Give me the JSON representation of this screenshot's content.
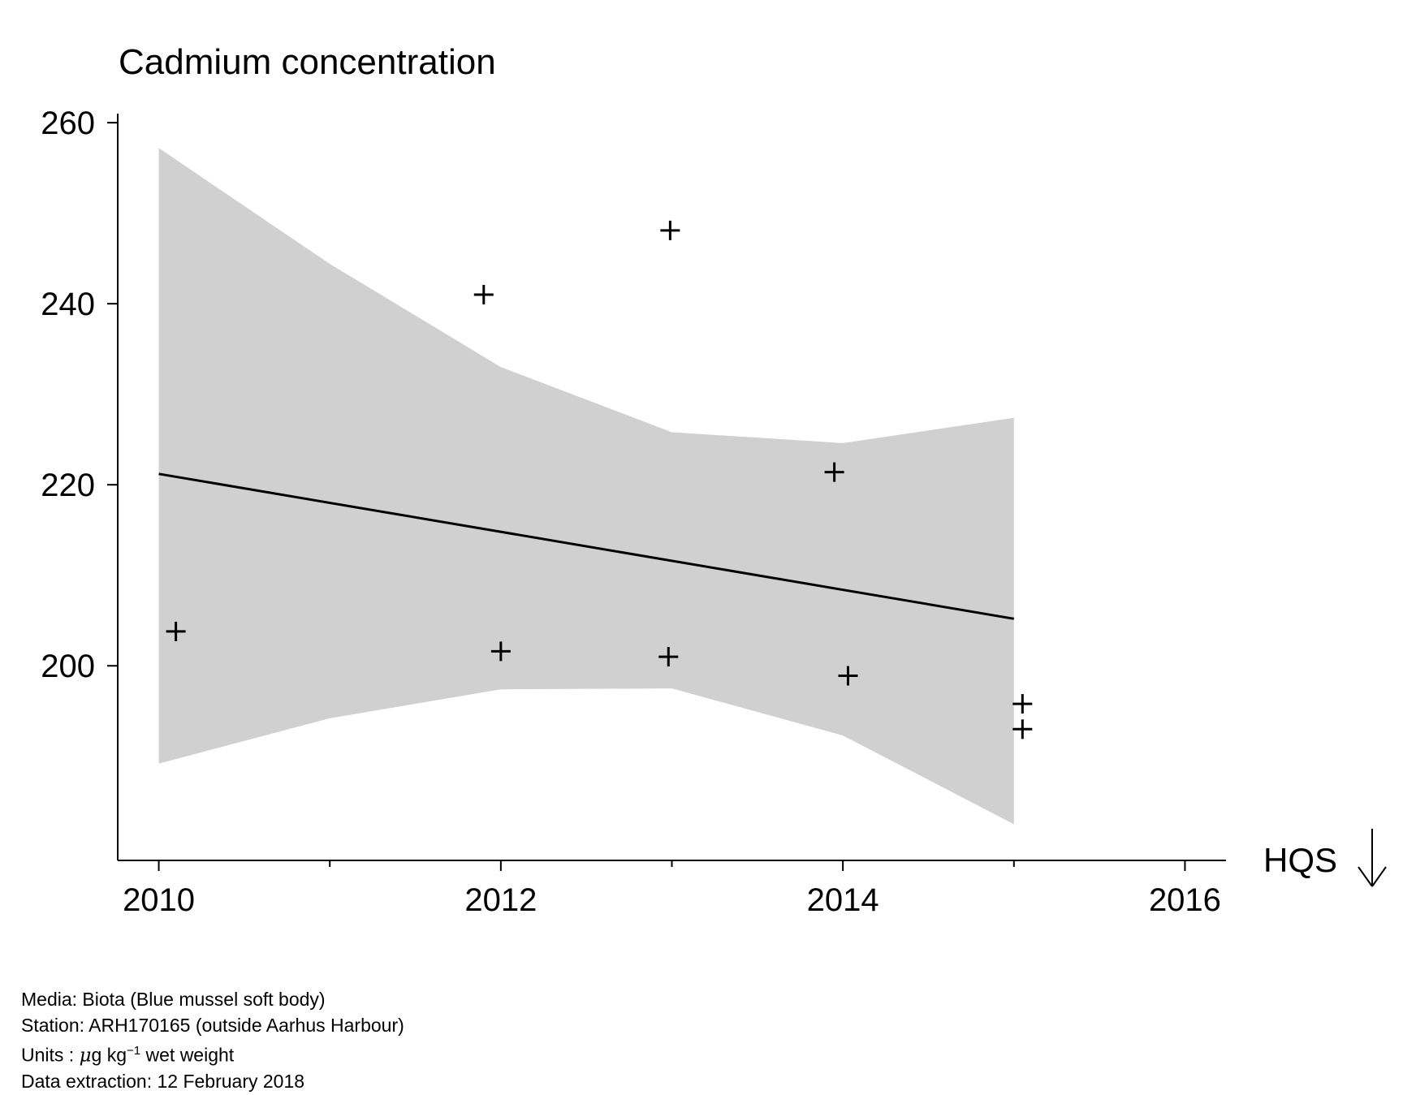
{
  "chart_data": {
    "type": "scatter",
    "title": "Cadmium concentration",
    "xlabel": "",
    "ylabel": "",
    "xlim": [
      2009.76,
      2016.24
    ],
    "ylim": [
      178.5,
      261
    ],
    "x_ticks": [
      2010,
      2012,
      2014,
      2016
    ],
    "x_minor_ticks": [
      2011,
      2013,
      2015
    ],
    "x_tick_labels": [
      "2010",
      "2012",
      "2014",
      "2016"
    ],
    "y_ticks": [
      200,
      220,
      240,
      260
    ],
    "y_tick_labels": [
      "200",
      "220",
      "240",
      "260"
    ],
    "grid": false,
    "legend": "none",
    "series": [
      {
        "type": "scatter",
        "marker": "+",
        "points": [
          {
            "x": 2010.1,
            "y": 203.8
          },
          {
            "x": 2011.9,
            "y": 241.0
          },
          {
            "x": 2012.0,
            "y": 201.6
          },
          {
            "x": 2012.99,
            "y": 248.1
          },
          {
            "x": 2012.98,
            "y": 201.0
          },
          {
            "x": 2013.95,
            "y": 221.4
          },
          {
            "x": 2014.03,
            "y": 198.9
          },
          {
            "x": 2015.05,
            "y": 195.8
          },
          {
            "x": 2015.05,
            "y": 193.0
          }
        ]
      },
      {
        "type": "line",
        "points": [
          {
            "x": 2010,
            "y": 221.2
          },
          {
            "x": 2015,
            "y": 205.2
          }
        ]
      },
      {
        "type": "band",
        "x": [
          2010,
          2011,
          2012,
          2013,
          2014,
          2015
        ],
        "upper": [
          257.2,
          244.4,
          233.0,
          225.8,
          224.6,
          227.4
        ],
        "lower": [
          189.2,
          194.2,
          197.4,
          197.5,
          192.3,
          182.5
        ]
      }
    ],
    "annotation": {
      "text": "HQS",
      "arrow": "down"
    },
    "colors": {
      "band": "#d0d0d0",
      "line": "#000000",
      "marker": "#000000"
    }
  },
  "footer": {
    "media": "Media: Biota (Blue mussel soft body)",
    "station": "Station: ARH170165 (outside Aarhus Harbour)",
    "units_prefix": "Units : ",
    "units_mu": "μ",
    "units_main": "g kg",
    "units_sup": "−1",
    "units_suffix": " wet weight",
    "extraction": "Data extraction: 12 February 2018"
  }
}
